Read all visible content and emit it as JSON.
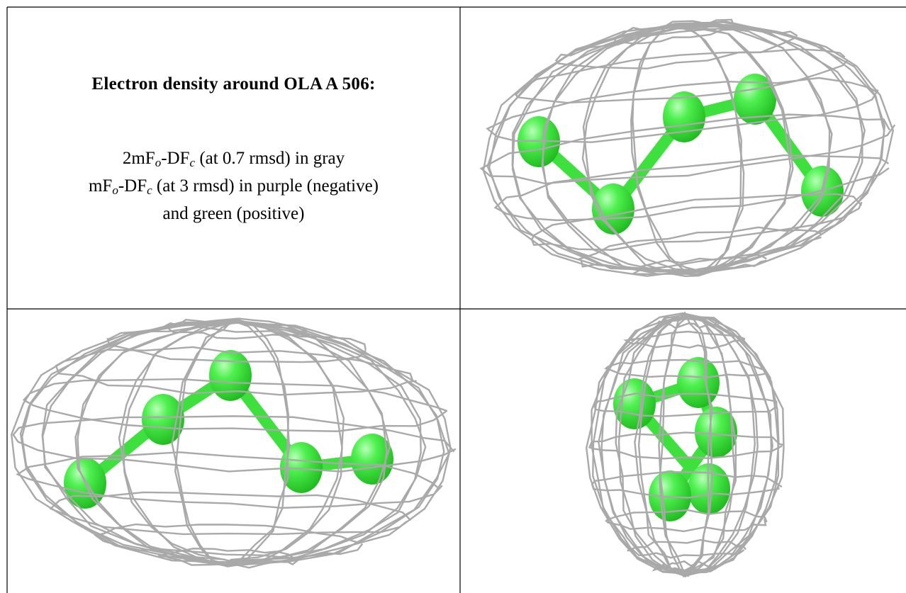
{
  "caption": {
    "title": "Electron density around OLA A 506:",
    "lines": [
      [
        "2mF",
        "o",
        "-DF",
        "c",
        " (at 0.7 rmsd) in gray"
      ],
      [
        "mF",
        "o",
        "-DF",
        "c",
        " (at 3 rmsd) in purple (negative)"
      ],
      [
        "and green (positive)"
      ]
    ]
  }
}
